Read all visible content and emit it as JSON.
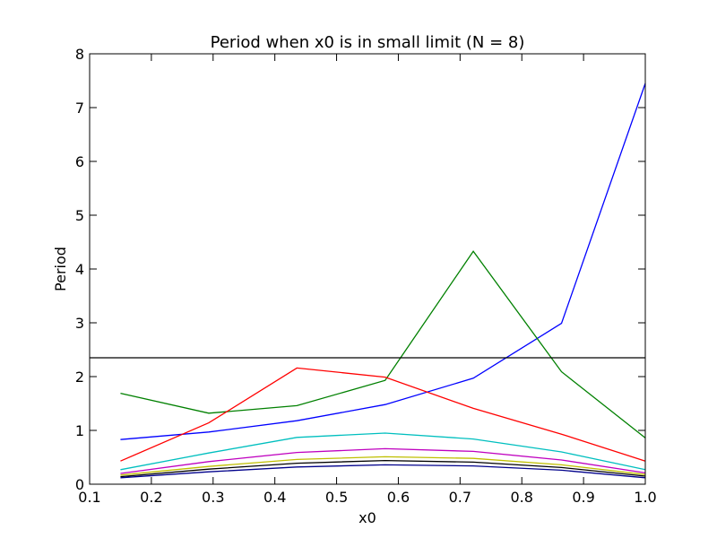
{
  "chart_data": {
    "type": "line",
    "title": "Period when x0 is in small limit (N = 8)",
    "xlabel": "x0",
    "ylabel": "Period",
    "xlim": [
      0.1,
      1.0
    ],
    "ylim": [
      0,
      8
    ],
    "grid": false,
    "x_ticks": [
      0.1,
      0.2,
      0.3,
      0.4,
      0.5,
      0.6,
      0.7,
      0.8,
      0.9,
      1.0
    ],
    "x_tick_labels": [
      "0.1",
      "0.2",
      "0.3",
      "0.4",
      "0.5",
      "0.6",
      "0.7",
      "0.8",
      "0.9",
      "1.0"
    ],
    "y_ticks": [
      0,
      1,
      2,
      3,
      4,
      5,
      6,
      7,
      8
    ],
    "y_tick_labels": [
      "0",
      "1",
      "2",
      "3",
      "4",
      "5",
      "6",
      "7",
      "8"
    ],
    "x": [
      0.15,
      0.2929,
      0.4357,
      0.5786,
      0.7214,
      0.8643,
      1.0
    ],
    "series": [
      {
        "color": "#0000ff",
        "values": [
          0.83,
          0.97,
          1.18,
          1.48,
          1.97,
          2.99,
          7.45
        ]
      },
      {
        "color": "#008000",
        "values": [
          1.69,
          1.32,
          1.46,
          1.93,
          4.33,
          2.09,
          0.86
        ]
      },
      {
        "color": "#ff0000",
        "values": [
          0.43,
          1.14,
          2.16,
          1.99,
          1.41,
          0.93,
          0.43
        ]
      },
      {
        "color": "#00bfbf",
        "values": [
          0.27,
          0.58,
          0.87,
          0.95,
          0.84,
          0.6,
          0.27
        ]
      },
      {
        "color": "#bf00bf",
        "values": [
          0.2,
          0.42,
          0.59,
          0.66,
          0.61,
          0.45,
          0.21
        ]
      },
      {
        "color": "#bfbf00",
        "values": [
          0.17,
          0.33,
          0.46,
          0.51,
          0.48,
          0.36,
          0.18
        ]
      },
      {
        "color": "#000000",
        "values": [
          0.14,
          0.28,
          0.39,
          0.44,
          0.41,
          0.31,
          0.15
        ]
      },
      {
        "color": "#00008b",
        "values": [
          0.12,
          0.23,
          0.32,
          0.36,
          0.34,
          0.26,
          0.12
        ]
      }
    ],
    "reference_line": {
      "y": 2.35,
      "color": "#000000"
    }
  }
}
